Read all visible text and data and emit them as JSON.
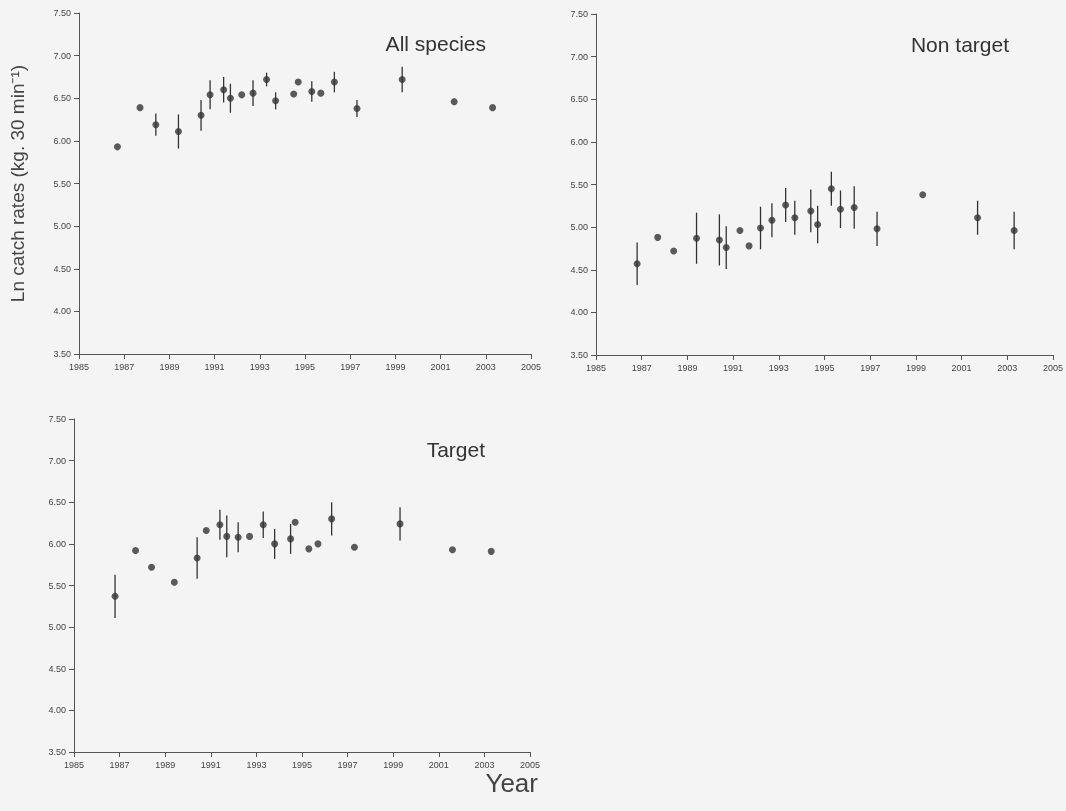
{
  "chart_data": [
    {
      "type": "scatter",
      "title": "All species",
      "ylabel": "Ln catch rates (kg. 30 min⁻¹)",
      "marker": "circle",
      "color": "#333333",
      "grid": false,
      "x": [
        1986.7,
        1987.7,
        1988.4,
        1989.4,
        1990.4,
        1990.8,
        1991.4,
        1991.7,
        1992.2,
        1992.7,
        1993.3,
        1993.7,
        1994.5,
        1994.7,
        1995.3,
        1995.7,
        1996.3,
        1997.3,
        1999.3,
        2001.6,
        2003.3
      ],
      "values": [
        5.93,
        6.39,
        6.19,
        6.11,
        6.3,
        6.54,
        6.6,
        6.5,
        6.54,
        6.56,
        6.72,
        6.47,
        6.55,
        6.69,
        6.58,
        6.56,
        6.69,
        6.38,
        6.72,
        6.46,
        6.39
      ],
      "errors": [
        null,
        null,
        0.13,
        0.2,
        0.18,
        0.17,
        0.15,
        0.17,
        null,
        0.15,
        0.08,
        0.1,
        null,
        null,
        0.12,
        null,
        0.12,
        0.1,
        0.15,
        null,
        null
      ],
      "xlim": [
        1985,
        2005
      ],
      "xticks": [
        1985,
        1987,
        1989,
        1991,
        1993,
        1995,
        1997,
        1999,
        2001,
        2003,
        2005
      ],
      "ylim": [
        3.5,
        7.5
      ],
      "yticks": [
        {
          "value": 3.5,
          "label": "3.50"
        },
        {
          "value": 4,
          "label": "4.00"
        },
        {
          "value": 4.5,
          "label": "4.50"
        },
        {
          "value": 5,
          "label": "5.00"
        },
        {
          "value": 5.5,
          "label": "5.50"
        },
        {
          "value": 6,
          "label": "6.00"
        },
        {
          "value": 6.5,
          "label": "6.50"
        },
        {
          "value": 7,
          "label": "7.00"
        },
        {
          "value": 7.5,
          "label": "7.50"
        }
      ]
    },
    {
      "type": "scatter",
      "title": "Non target",
      "marker": "circle",
      "color": "#333333",
      "grid": false,
      "x": [
        1986.8,
        1987.7,
        1988.4,
        1989.4,
        1990.4,
        1990.7,
        1991.3,
        1991.7,
        1992.2,
        1992.7,
        1993.3,
        1993.7,
        1994.4,
        1994.7,
        1995.3,
        1995.7,
        1996.3,
        1997.3,
        1999.3,
        2001.7,
        2003.3
      ],
      "values": [
        4.57,
        4.88,
        4.72,
        4.87,
        4.85,
        4.76,
        4.96,
        4.78,
        4.99,
        5.08,
        5.26,
        5.11,
        5.19,
        5.03,
        5.45,
        5.21,
        5.23,
        4.98,
        5.38,
        5.11,
        4.96
      ],
      "errors": [
        0.25,
        null,
        null,
        0.3,
        0.3,
        0.25,
        null,
        null,
        0.25,
        0.2,
        0.2,
        0.2,
        0.25,
        0.22,
        0.2,
        0.22,
        0.25,
        0.2,
        null,
        0.2,
        0.22
      ],
      "xlim": [
        1985,
        2005
      ],
      "xticks": [
        1985,
        1987,
        1989,
        1991,
        1993,
        1995,
        1997,
        1999,
        2001,
        2003,
        2005
      ],
      "ylim": [
        3.5,
        7.5
      ],
      "yticks": [
        {
          "value": 3.5,
          "label": "3.50"
        },
        {
          "value": 4,
          "label": "4.00"
        },
        {
          "value": 4.5,
          "label": "4.50"
        },
        {
          "value": 5,
          "label": "5.00"
        },
        {
          "value": 5.5,
          "label": "5.50"
        },
        {
          "value": 6,
          "label": "6.00"
        },
        {
          "value": 6.5,
          "label": "6.50"
        },
        {
          "value": 7,
          "label": "7.00"
        },
        {
          "value": 7.5,
          "label": "7.50"
        }
      ]
    },
    {
      "type": "scatter",
      "title": "Target",
      "xlabel": "Year",
      "marker": "circle",
      "color": "#333333",
      "grid": false,
      "x": [
        1986.8,
        1987.7,
        1988.4,
        1989.4,
        1990.4,
        1990.8,
        1991.4,
        1991.7,
        1992.2,
        1992.7,
        1993.3,
        1993.8,
        1994.5,
        1994.7,
        1995.3,
        1995.7,
        1996.3,
        1997.3,
        1999.3,
        2001.6,
        2003.3
      ],
      "values": [
        5.37,
        5.92,
        5.72,
        5.54,
        5.83,
        6.16,
        6.23,
        6.09,
        6.08,
        6.09,
        6.23,
        6.0,
        6.06,
        6.26,
        5.94,
        6.0,
        6.3,
        5.96,
        6.24,
        5.93,
        5.91
      ],
      "errors": [
        0.26,
        null,
        null,
        null,
        0.25,
        null,
        0.18,
        0.25,
        0.18,
        null,
        0.16,
        0.18,
        0.18,
        null,
        null,
        null,
        0.2,
        null,
        0.2,
        null,
        null
      ],
      "xlim": [
        1985,
        2005
      ],
      "xticks": [
        1985,
        1987,
        1989,
        1991,
        1993,
        1995,
        1997,
        1999,
        2001,
        2003,
        2005
      ],
      "ylim": [
        3.5,
        7.5
      ],
      "yticks": [
        {
          "value": 3.5,
          "label": "3.50"
        },
        {
          "value": 4,
          "label": "4.00"
        },
        {
          "value": 4.5,
          "label": "4.50"
        },
        {
          "value": 5,
          "label": "5.00"
        },
        {
          "value": 5.5,
          "label": "5.50"
        },
        {
          "value": 6,
          "label": "6.00"
        },
        {
          "value": 6.5,
          "label": "6.50"
        },
        {
          "value": 7,
          "label": "7.00"
        },
        {
          "value": 7.5,
          "label": "7.50"
        }
      ]
    }
  ]
}
